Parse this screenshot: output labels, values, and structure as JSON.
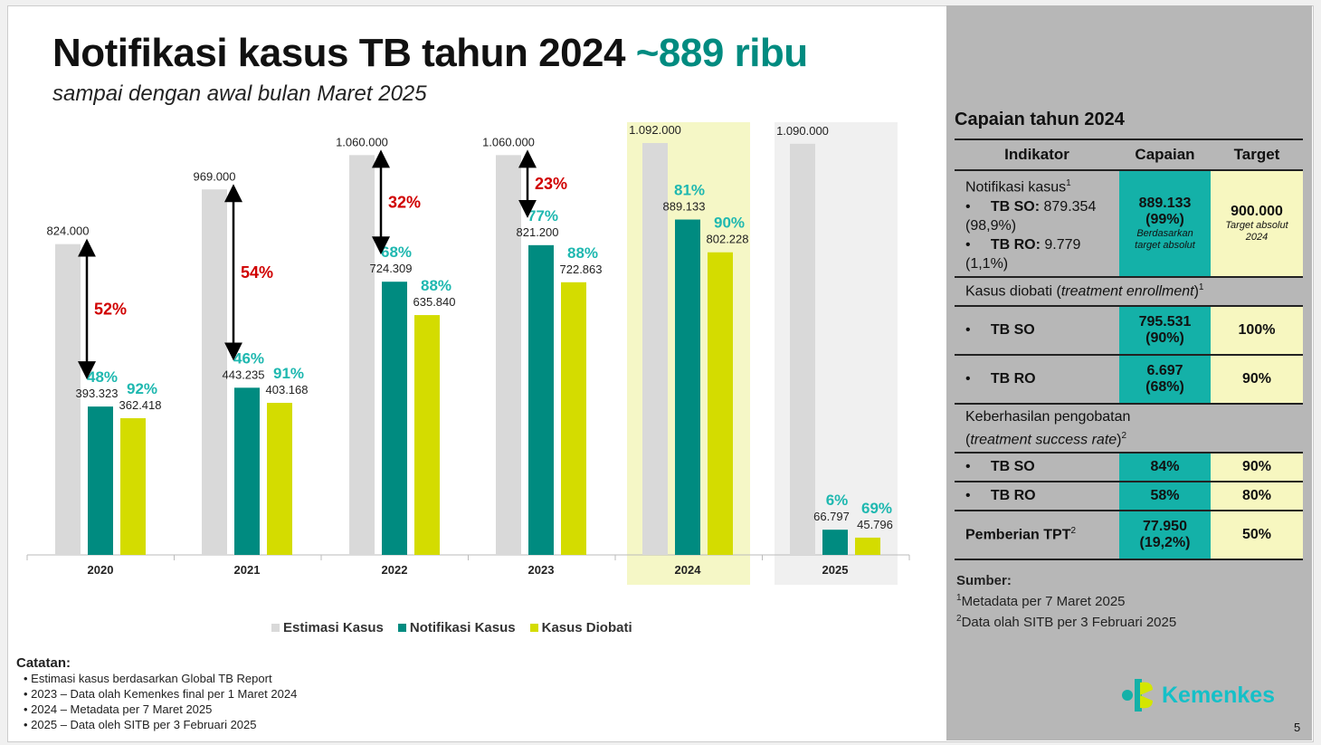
{
  "title": {
    "main": "Notifikasi kasus TB tahun 2024",
    "highlight": "~889 ribu",
    "subtitle": "sampai dengan awal bulan Maret 2025"
  },
  "chart_data": {
    "type": "bar",
    "categories": [
      "2020",
      "2021",
      "2022",
      "2023",
      "2024",
      "2025"
    ],
    "series": [
      {
        "name": "Estimasi Kasus",
        "color": "#d9d9d9",
        "values": [
          824000,
          969000,
          1060000,
          1060000,
          1092000,
          1090000
        ],
        "labels": [
          "824.000",
          "969.000",
          "1.060.000",
          "1.060.000",
          "1.092.000",
          "1.090.000"
        ]
      },
      {
        "name": "Notifikasi Kasus",
        "color": "#008b80",
        "values": [
          393323,
          443235,
          724309,
          821200,
          889133,
          66797
        ],
        "labels": [
          "393.323",
          "443.235",
          "724.309",
          "821.200",
          "889.133",
          "66.797"
        ],
        "pct": [
          "48%",
          "46%",
          "68%",
          "77%",
          "81%",
          "6%"
        ]
      },
      {
        "name": "Kasus Diobati",
        "color": "#d4dc00",
        "values": [
          362418,
          403168,
          635840,
          722863,
          802228,
          45796
        ],
        "labels": [
          "362.418",
          "403.168",
          "635.840",
          "722.863",
          "802.228",
          "45.796"
        ],
        "pct": [
          "92%",
          "91%",
          "88%",
          "88%",
          "90%",
          "69%"
        ]
      }
    ],
    "gap_pct": [
      "52%",
      "54%",
      "32%",
      "23%",
      null,
      null
    ],
    "highlight_years": {
      "2024": "#f5f7c6",
      "2025": "#f0f0f0"
    },
    "legend_position": "bottom",
    "ylim": [
      0,
      1092000
    ]
  },
  "notes": {
    "heading": "Catatan:",
    "items": [
      "Estimasi kasus berdasarkan Global TB Report",
      "2023 – Data olah Kemenkes final per 1 Maret 2024",
      "2024 – Metadata per 7 Maret 2025",
      "2025 – Data oleh SITB per 3 Februari 2025"
    ]
  },
  "panel": {
    "title": "Capaian tahun 2024",
    "headers": [
      "Indikator",
      "Capaian",
      "Target"
    ],
    "notif": {
      "label": "Notifikasi kasus",
      "sup": "1",
      "so_label": "TB SO:",
      "so_val": "879.354 (98,9%)",
      "ro_label": "TB RO:",
      "ro_val": "9.779 (1,1%)",
      "capaian": "889.133",
      "capaian_pct": "(99%)",
      "capaian_note": "Berdasarkan target absolut",
      "target": "900.000",
      "target_note": "Target absolut 2024"
    },
    "diobati": {
      "label": "Kasus diobati (",
      "label_it": "treatment enrollment",
      "label_end": ")",
      "sup": "1",
      "so": "TB SO",
      "so_cap": "795.531",
      "so_pct": "(90%)",
      "so_target": "100%",
      "ro": "TB RO",
      "ro_cap": "6.697",
      "ro_pct": "(68%)",
      "ro_target": "90%"
    },
    "sukses": {
      "label": "Keberhasilan pengobatan",
      "label_it": "treatment success rate",
      "sup": "2",
      "so": "TB SO",
      "so_cap": "84%",
      "so_target": "90%",
      "ro": "TB RO",
      "ro_cap": "58%",
      "ro_target": "80%"
    },
    "tpt": {
      "label": "Pemberian TPT",
      "sup": "2",
      "cap": "77.950",
      "cap_pct": "(19,2%)",
      "target": "50%"
    },
    "sources": {
      "heading": "Sumber:",
      "s1": "Metadata per 7 Maret 2025",
      "s2": "Data olah SITB per 3 Februari 2025"
    },
    "logo": "Kemenkes",
    "page": "5"
  },
  "colors": {
    "teal": "#008b80",
    "pct_teal": "#1fb8b0",
    "red": "#d00000",
    "yellow": "#d4dc00"
  }
}
